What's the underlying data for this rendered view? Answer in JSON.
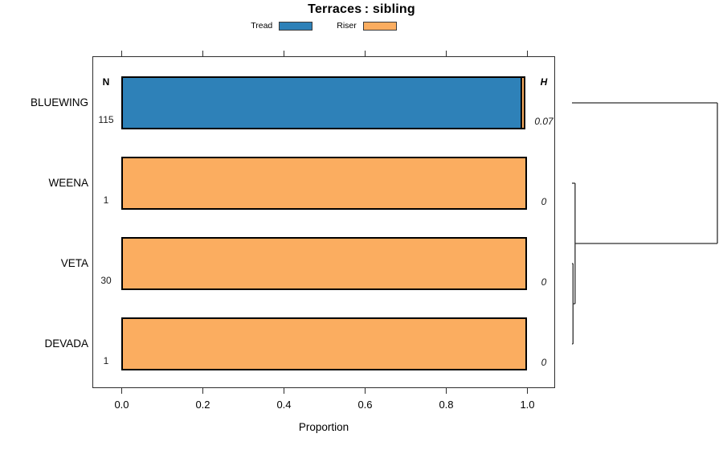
{
  "title": "Terraces : sibling",
  "legend": [
    {
      "label": "Tread",
      "color": "#2E81B8"
    },
    {
      "label": "Riser",
      "color": "#FBAD60"
    }
  ],
  "columns": {
    "n_header": "N",
    "h_header": "H"
  },
  "axis": {
    "label": "Proportion",
    "ticks": [
      "0.0",
      "0.2",
      "0.4",
      "0.6",
      "0.8",
      "1.0"
    ]
  },
  "chart_data": {
    "type": "bar",
    "orientation": "horizontal",
    "stacked": true,
    "title": "Terraces: sibling",
    "xlabel": "Proportion",
    "xlim": [
      0,
      1
    ],
    "x_ticks": [
      0,
      0.2,
      0.4,
      0.6,
      0.8,
      1
    ],
    "grid": false,
    "legend_position": "top-center",
    "categories": [
      "BLUEWING",
      "WEENA",
      "VETA",
      "DEVADA"
    ],
    "series": [
      {
        "name": "Tread",
        "color": "#2E81B8",
        "values": [
          0.988,
          0,
          0,
          0
        ]
      },
      {
        "name": "Riser",
        "color": "#FBAD60",
        "values": [
          0.012,
          1,
          1,
          1
        ]
      }
    ],
    "n_values": [
      "115",
      "1",
      "30",
      "1"
    ],
    "h_values": [
      "0.07",
      "0",
      "0",
      "0"
    ],
    "dendrogram": {
      "height": 0.07,
      "children": [
        {
          "leaf": "BLUEWING"
        },
        {
          "height": 0.0015,
          "children": [
            {
              "leaf": "WEENA"
            },
            {
              "height": 0.0005,
              "children": [
                {
                  "leaf": "VETA"
                },
                {
                  "leaf": "DEVADA"
                }
              ]
            }
          ]
        }
      ]
    }
  }
}
